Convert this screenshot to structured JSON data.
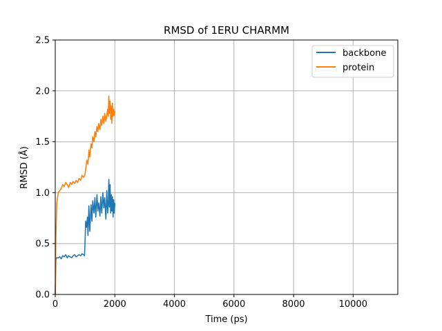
{
  "chart_data": {
    "type": "line",
    "title": "RMSD of 1ERU CHARMM",
    "xlabel": "Time (ps)",
    "ylabel": "RMSD (Å)",
    "xlim": [
      0,
      11500
    ],
    "ylim": [
      0,
      2.5
    ],
    "xticks": [
      0,
      2000,
      4000,
      6000,
      8000,
      10000
    ],
    "xtick_labels": [
      "0",
      "2000",
      "4000",
      "6000",
      "8000",
      "10000"
    ],
    "yticks": [
      0,
      0.5,
      1.0,
      1.5,
      2.0,
      2.5
    ],
    "ytick_labels": [
      "0.0",
      "0.5",
      "1.0",
      "1.5",
      "2.0",
      "2.5"
    ],
    "grid": true,
    "legend": {
      "position": "top-right"
    },
    "series": [
      {
        "name": "backbone",
        "color": "#1f77b4",
        "x": [
          0,
          20,
          50,
          100,
          150,
          200,
          250,
          300,
          350,
          400,
          450,
          500,
          550,
          600,
          650,
          700,
          750,
          800,
          850,
          900,
          950,
          980,
          1000,
          1020,
          1050,
          1080,
          1100,
          1130,
          1160,
          1200,
          1230,
          1260,
          1300,
          1330,
          1360,
          1400,
          1430,
          1460,
          1500,
          1530,
          1560,
          1600,
          1630,
          1660,
          1700,
          1730,
          1760,
          1780,
          1800,
          1820,
          1840,
          1860,
          1880,
          1900,
          1920,
          1940,
          1960,
          1980,
          2000
        ],
        "y": [
          0.0,
          0.34,
          0.36,
          0.36,
          0.37,
          0.35,
          0.38,
          0.37,
          0.39,
          0.36,
          0.38,
          0.37,
          0.36,
          0.38,
          0.39,
          0.37,
          0.38,
          0.39,
          0.38,
          0.4,
          0.39,
          0.38,
          0.5,
          0.72,
          0.66,
          0.76,
          0.58,
          0.87,
          0.62,
          0.88,
          0.72,
          0.92,
          0.8,
          0.95,
          0.76,
          0.98,
          0.82,
          0.9,
          0.77,
          0.96,
          0.8,
          1.0,
          0.85,
          0.95,
          0.74,
          1.02,
          0.8,
          0.88,
          1.13,
          0.86,
          1.08,
          0.8,
          0.98,
          0.82,
          0.96,
          0.76,
          0.93,
          0.8,
          0.9
        ]
      },
      {
        "name": "protein",
        "color": "#ff7f0e",
        "x": [
          0,
          20,
          50,
          80,
          100,
          150,
          200,
          250,
          300,
          350,
          400,
          450,
          500,
          550,
          600,
          650,
          700,
          750,
          800,
          850,
          900,
          950,
          1000,
          1030,
          1060,
          1100,
          1130,
          1160,
          1200,
          1230,
          1260,
          1300,
          1330,
          1360,
          1400,
          1430,
          1460,
          1500,
          1530,
          1560,
          1600,
          1630,
          1660,
          1700,
          1730,
          1760,
          1780,
          1800,
          1820,
          1840,
          1860,
          1880,
          1900,
          1920,
          1940,
          1960,
          1980,
          2000
        ],
        "y": [
          0.0,
          0.55,
          0.9,
          0.96,
          1.0,
          1.02,
          1.04,
          1.08,
          1.06,
          1.1,
          1.08,
          1.05,
          1.1,
          1.08,
          1.11,
          1.09,
          1.12,
          1.1,
          1.14,
          1.12,
          1.17,
          1.15,
          1.18,
          1.25,
          1.32,
          1.28,
          1.42,
          1.35,
          1.48,
          1.44,
          1.55,
          1.5,
          1.6,
          1.55,
          1.65,
          1.6,
          1.68,
          1.62,
          1.72,
          1.66,
          1.75,
          1.68,
          1.78,
          1.7,
          1.76,
          1.82,
          1.75,
          1.95,
          1.78,
          1.9,
          1.72,
          1.85,
          1.68,
          1.88,
          1.75,
          1.82,
          1.76,
          1.8
        ]
      }
    ]
  }
}
